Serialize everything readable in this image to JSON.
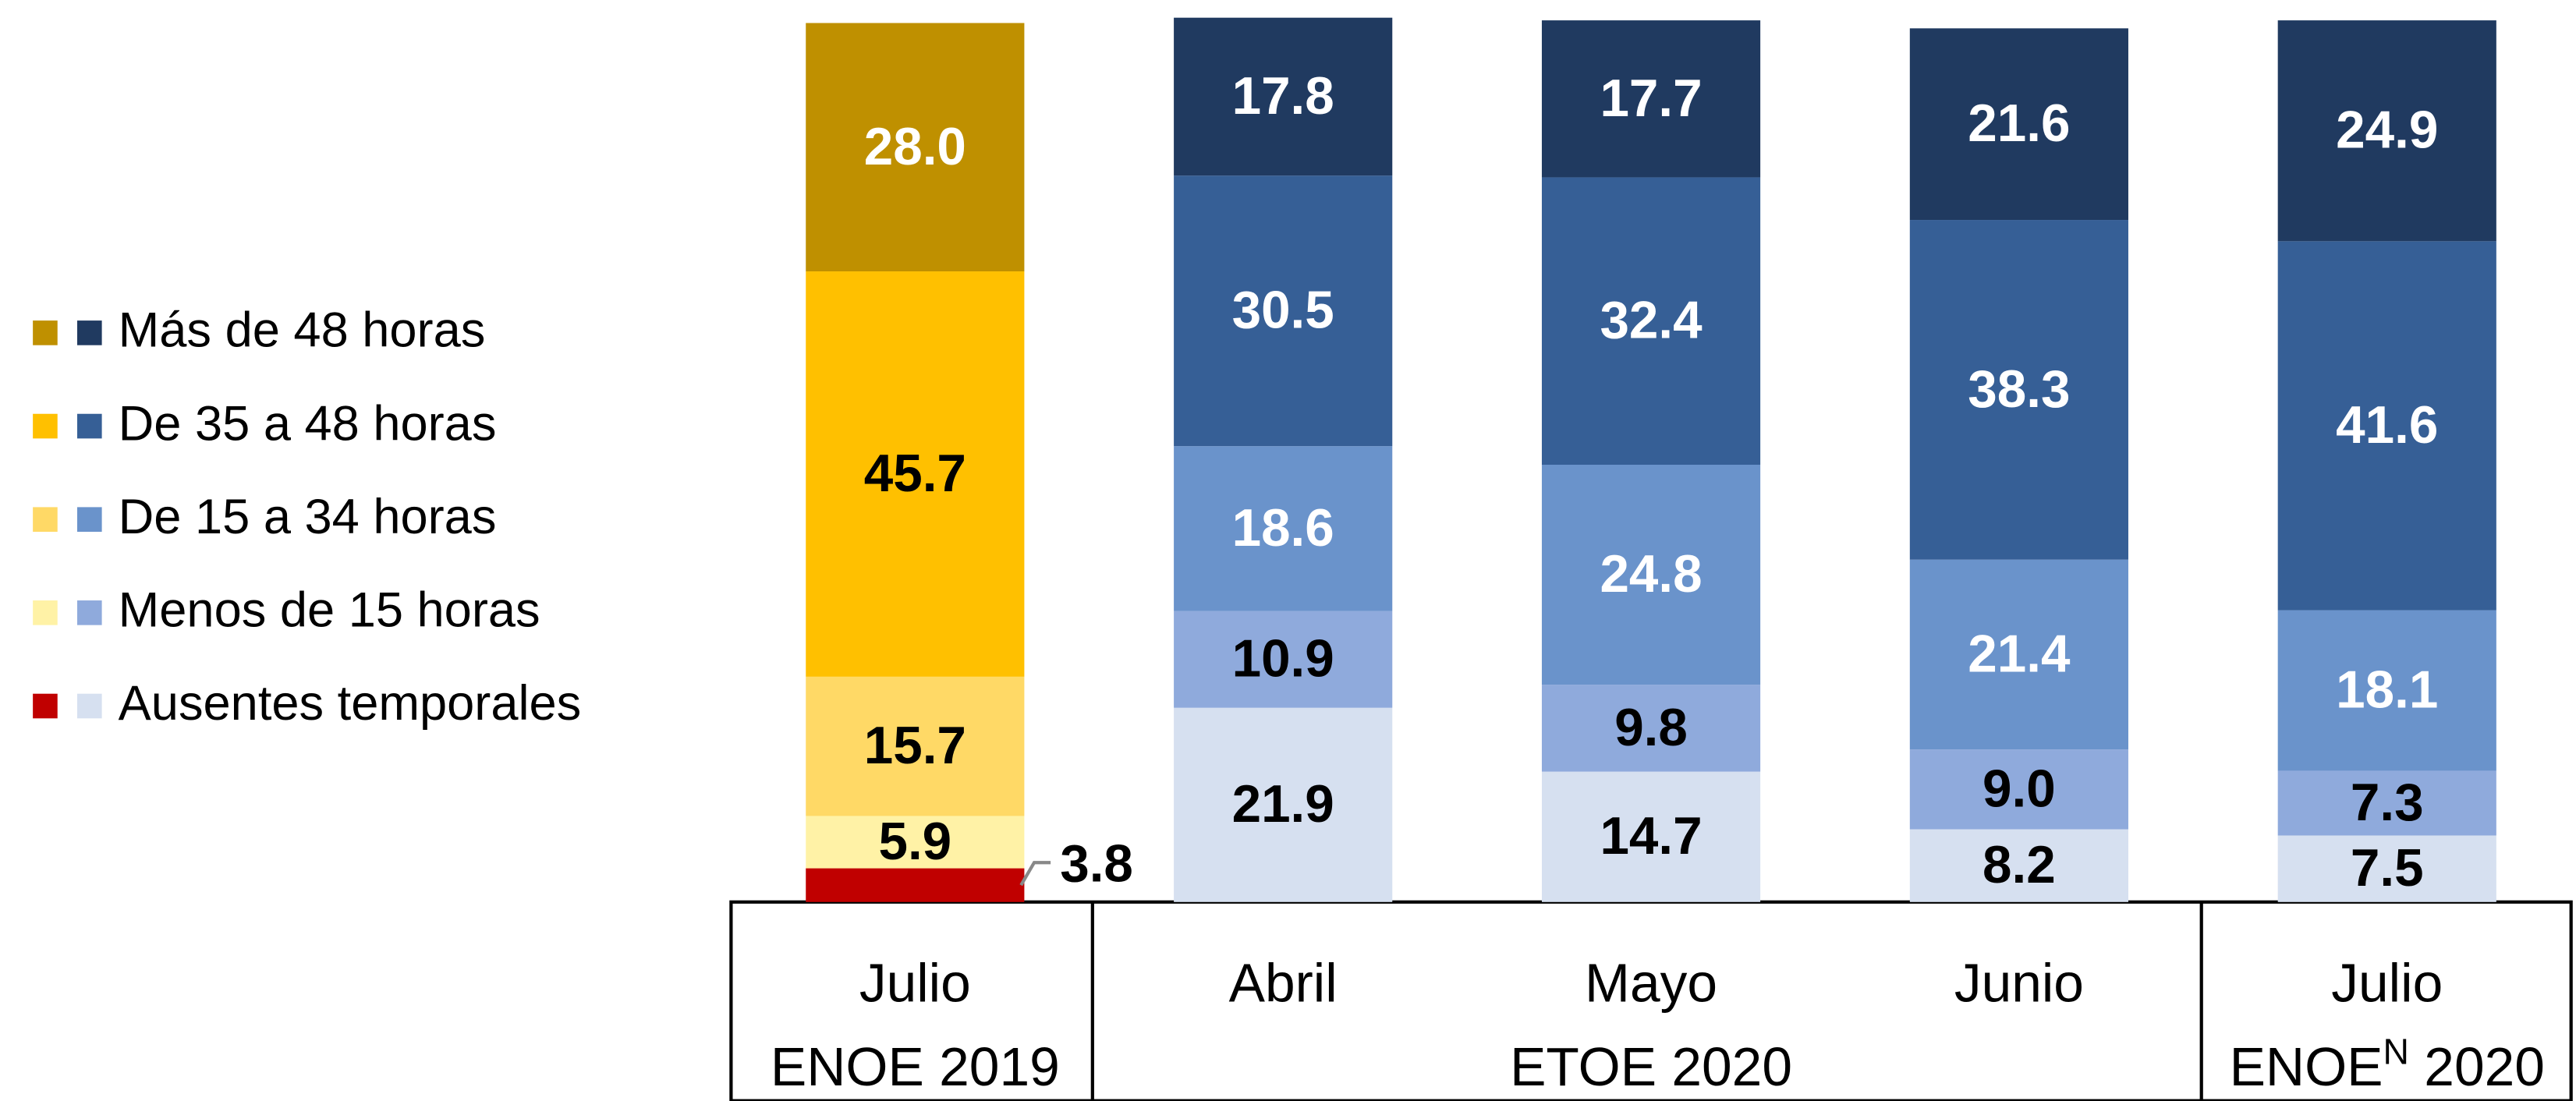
{
  "chart_data": {
    "type": "stacked_bar",
    "categories": [
      "Julio",
      "Abril",
      "Mayo",
      "Junio",
      "Julio"
    ],
    "groups": [
      {
        "label": "ENOE 2019",
        "span": [
          0,
          0
        ]
      },
      {
        "label": "ETOE 2020",
        "span": [
          1,
          3
        ]
      },
      {
        "label": "ENOE",
        "superscript": "N",
        "suffix": " 2020",
        "span": [
          4,
          4
        ]
      }
    ],
    "series": [
      {
        "name": "Ausentes temporales",
        "colors": [
          "#C00000",
          "#D6E0F0",
          "#D6E0F0",
          "#D6E0F0",
          "#D6E0F0"
        ],
        "values": [
          3.8,
          21.9,
          14.7,
          8.2,
          7.5
        ],
        "value_labels": [
          "3.8",
          "21.9",
          "14.7",
          "8.2",
          "7.5"
        ]
      },
      {
        "name": "Menos de 15 horas",
        "colors": [
          "#FFF2A6",
          "#8FAADC",
          "#8FAADC",
          "#8FAADC",
          "#8FAADC"
        ],
        "values": [
          5.9,
          10.9,
          9.8,
          9.0,
          7.3
        ],
        "value_labels": [
          "5.9",
          "10.9",
          "9.8",
          "9.0",
          "7.3"
        ]
      },
      {
        "name": "De 15 a 34 horas",
        "colors": [
          "#FFD966",
          "#6A93CB",
          "#6A93CB",
          "#6A93CB",
          "#6A93CB"
        ],
        "values": [
          15.7,
          18.6,
          24.8,
          21.4,
          18.1
        ],
        "value_labels": [
          "15.7",
          "18.6",
          "24.8",
          "21.4",
          "18.1"
        ]
      },
      {
        "name": "De 35 a 48 horas",
        "colors": [
          "#FFC000",
          "#365F96",
          "#365F96",
          "#365F96",
          "#365F96"
        ],
        "values": [
          45.7,
          30.5,
          32.4,
          38.3,
          41.6
        ],
        "value_labels": [
          "45.7",
          "30.5",
          "32.4",
          "38.3",
          "41.6"
        ]
      },
      {
        "name": "Más de 48 horas",
        "colors": [
          "#BF9000",
          "#203A60",
          "#203A60",
          "#203A60",
          "#203A60"
        ],
        "values": [
          28.0,
          17.8,
          17.7,
          21.6,
          24.9
        ],
        "value_labels": [
          "28.0",
          "17.8",
          "17.7",
          "21.6",
          "24.9"
        ]
      }
    ],
    "legend": "left"
  }
}
